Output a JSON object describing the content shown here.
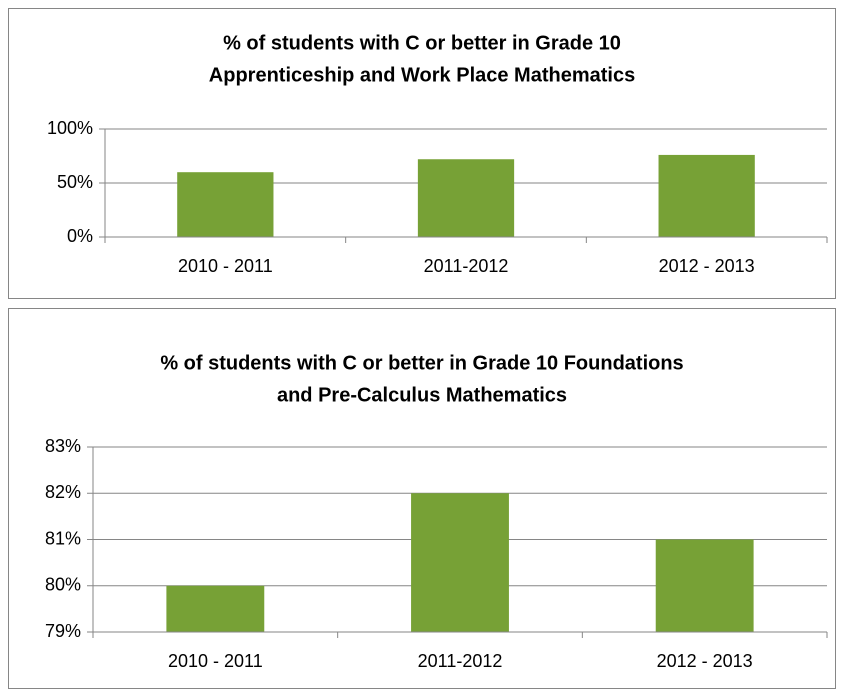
{
  "chart_data": [
    {
      "type": "bar",
      "title": [
        "% of students with C or better in Grade 10",
        "Apprenticeship and Work Place Mathematics"
      ],
      "categories": [
        "2010 - 2011",
        "2011-2012",
        "2012 - 2013"
      ],
      "values": [
        60,
        72,
        76
      ],
      "color": "#77a136",
      "ylim": [
        0,
        100
      ],
      "yticks": [
        {
          "value": 0,
          "label": "0%"
        },
        {
          "value": 50,
          "label": "50%"
        },
        {
          "value": 100,
          "label": "100%"
        }
      ],
      "grid": true
    },
    {
      "type": "bar",
      "title": [
        "% of students with C or better in Grade 10 Foundations",
        "and Pre-Calculus Mathematics"
      ],
      "categories": [
        "2010 - 2011",
        "2011-2012",
        "2012 - 2013"
      ],
      "values": [
        80,
        82,
        81
      ],
      "color": "#77a136",
      "ylim": [
        79,
        83
      ],
      "yticks": [
        {
          "value": 79,
          "label": "79%"
        },
        {
          "value": 80,
          "label": "80%"
        },
        {
          "value": 81,
          "label": "81%"
        },
        {
          "value": 82,
          "label": "82%"
        },
        {
          "value": 83,
          "label": "83%"
        }
      ],
      "grid": true
    }
  ]
}
